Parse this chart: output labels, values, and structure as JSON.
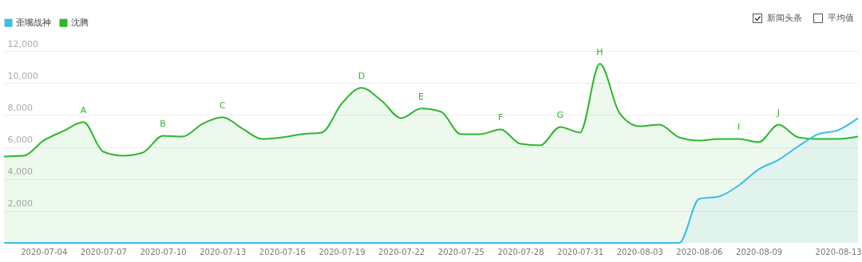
{
  "chart_data": {
    "type": "area",
    "x": [
      "2020-07-02",
      "2020-07-03",
      "2020-07-04",
      "2020-07-05",
      "2020-07-06",
      "2020-07-07",
      "2020-07-08",
      "2020-07-09",
      "2020-07-10",
      "2020-07-11",
      "2020-07-12",
      "2020-07-13",
      "2020-07-14",
      "2020-07-15",
      "2020-07-16",
      "2020-07-17",
      "2020-07-18",
      "2020-07-19",
      "2020-07-20",
      "2020-07-21",
      "2020-07-22",
      "2020-07-23",
      "2020-07-24",
      "2020-07-25",
      "2020-07-26",
      "2020-07-27",
      "2020-07-28",
      "2020-07-29",
      "2020-07-30",
      "2020-07-31",
      "2020-08-01",
      "2020-08-02",
      "2020-08-03",
      "2020-08-04",
      "2020-08-05",
      "2020-08-06",
      "2020-08-07",
      "2020-08-08",
      "2020-08-09",
      "2020-08-10",
      "2020-08-11",
      "2020-08-12",
      "2020-08-13",
      "2020-08-14"
    ],
    "series": [
      {
        "name": "歪嘴战神",
        "color": "#3dbde8",
        "values": [
          0,
          0,
          0,
          0,
          0,
          0,
          0,
          0,
          0,
          0,
          0,
          0,
          0,
          0,
          0,
          0,
          0,
          0,
          0,
          0,
          0,
          0,
          0,
          0,
          0,
          0,
          0,
          0,
          0,
          0,
          0,
          0,
          0,
          0,
          0,
          2750,
          2900,
          3600,
          4600,
          5200,
          6050,
          6800,
          7050,
          7800
        ]
      },
      {
        "name": "沈腾",
        "color": "#2cb82c",
        "values": [
          5400,
          5450,
          6400,
          7000,
          7550,
          5700,
          5450,
          5650,
          6700,
          6650,
          7450,
          7850,
          7150,
          6500,
          6600,
          6800,
          6900,
          8700,
          9700,
          8900,
          7800,
          8400,
          8200,
          6800,
          6800,
          7100,
          6200,
          6100,
          7250,
          6900,
          11200,
          8100,
          7300,
          7400,
          6600,
          6400,
          6500,
          6500,
          6300,
          7400,
          6600,
          6500,
          6500,
          6650
        ]
      }
    ],
    "xlim": [
      "2020-07-02",
      "2020-08-14"
    ],
    "xticks": [
      "2020-07-04",
      "2020-07-07",
      "2020-07-10",
      "2020-07-13",
      "2020-07-16",
      "2020-07-19",
      "2020-07-22",
      "2020-07-25",
      "2020-07-28",
      "2020-07-31",
      "2020-08-03",
      "2020-08-06",
      "2020-08-09",
      "2020-08-13"
    ],
    "ylim": [
      0,
      12000
    ],
    "yticks": [
      {
        "value": 2000,
        "label": "2,000"
      },
      {
        "value": 4000,
        "label": "4,000"
      },
      {
        "value": 6000,
        "label": "6,000"
      },
      {
        "value": 8000,
        "label": "8,000"
      },
      {
        "value": 10000,
        "label": "10,000"
      },
      {
        "value": 12000,
        "label": "12,000"
      }
    ],
    "grid": "y",
    "legend": "top left",
    "annotations": [
      "新闻头条",
      "平均值",
      {
        "text": "A",
        "x": "2020-07-06",
        "y": 7550
      },
      {
        "text": "B",
        "x": "2020-07-10",
        "y": 6700
      },
      {
        "text": "C",
        "x": "2020-07-13",
        "y": 7850
      },
      {
        "text": "D",
        "x": "2020-07-20",
        "y": 9700
      },
      {
        "text": "E",
        "x": "2020-07-23",
        "y": 8400
      },
      {
        "text": "F",
        "x": "2020-07-27",
        "y": 7100
      },
      {
        "text": "G",
        "x": "2020-07-30",
        "y": 7250
      },
      {
        "text": "H",
        "x": "2020-08-01",
        "y": 11200
      },
      {
        "text": "I",
        "x": "2020-08-08",
        "y": 6500
      },
      {
        "text": "J",
        "x": "2020-08-10",
        "y": 7400
      }
    ]
  }
}
